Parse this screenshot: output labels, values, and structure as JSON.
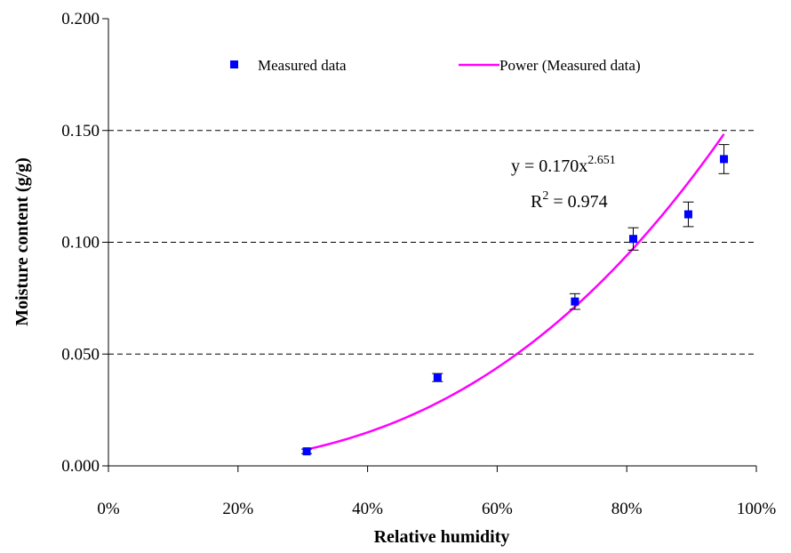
{
  "chart_data": {
    "type": "scatter",
    "xlabel": "Relative humidity",
    "ylabel": "Moisture content (g/g)",
    "xlim": [
      0,
      1
    ],
    "ylim": [
      0,
      0.2
    ],
    "x_ticks": [
      "0%",
      "20%",
      "40%",
      "60%",
      "80%",
      "100%"
    ],
    "y_ticks": [
      "0.000",
      "0.050",
      "0.100",
      "0.150",
      "0.200"
    ],
    "grid": "horizontal dashed",
    "legend_position": "top",
    "series": [
      {
        "name": "Measured data",
        "kind": "points",
        "color": "#0000ff",
        "x": [
          0.306,
          0.508,
          0.72,
          0.81,
          0.895,
          0.95
        ],
        "y": [
          0.0065,
          0.0395,
          0.0735,
          0.1015,
          0.1125,
          0.1372
        ],
        "error": [
          0.001,
          0.0018,
          0.0035,
          0.005,
          0.0055,
          0.0065
        ]
      },
      {
        "name": "Power (Measured data)",
        "kind": "line",
        "color": "#ff00ff",
        "coefficient": 0.17,
        "exponent": 2.651,
        "x_range": [
          0.306,
          0.95
        ]
      }
    ],
    "annotation": {
      "equation_prefix": "y = 0.170x",
      "equation_exponent": "2.651",
      "r2_prefix": "R",
      "r2_superscript": "2",
      "r2_suffix": " = 0.974"
    }
  }
}
